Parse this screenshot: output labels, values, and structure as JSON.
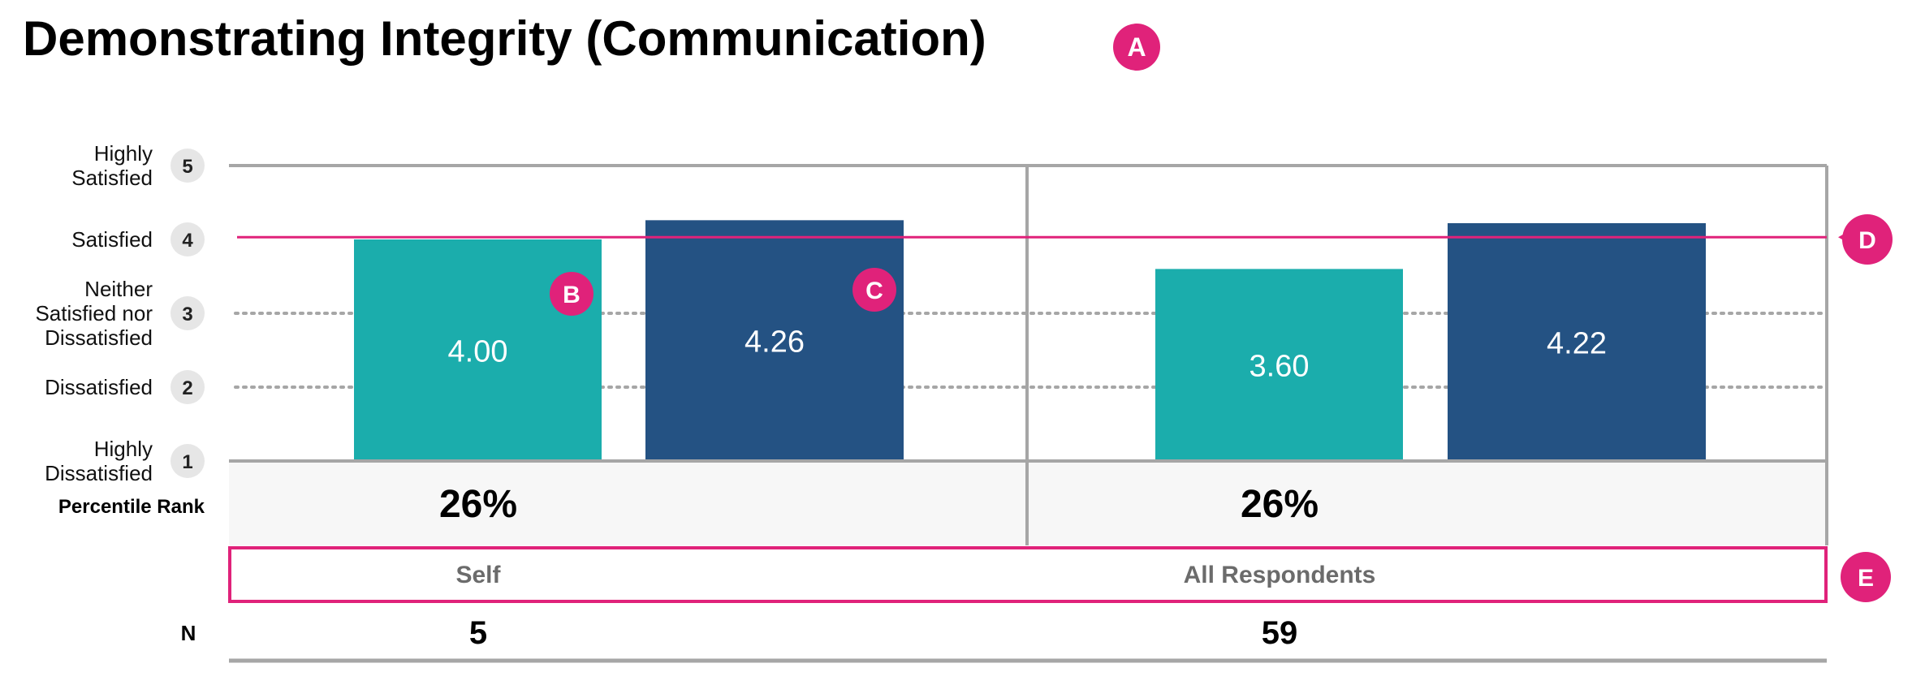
{
  "title": "Demonstrating Integrity (Communication)",
  "markers": {
    "a": "A",
    "b": "B",
    "c": "C",
    "d": "D",
    "e": "E"
  },
  "scale_labels": [
    {
      "value": 5,
      "lines": [
        "Highly",
        "Satisfied"
      ]
    },
    {
      "value": 4,
      "lines": [
        "Satisfied"
      ]
    },
    {
      "value": 3,
      "lines": [
        "Neither",
        "Satisfied nor",
        "Dissatisfied"
      ]
    },
    {
      "value": 2,
      "lines": [
        "Dissatisfied"
      ]
    },
    {
      "value": 1,
      "lines": [
        "Highly",
        "Dissatisfied"
      ]
    }
  ],
  "percentile_label": "Percentile Rank",
  "n_label": "N",
  "colors": {
    "teal": "#1badac",
    "navy": "#245283",
    "accent": "#e0227a",
    "grid": "#a6a6a6",
    "badge": "#e6e6e6",
    "band": "#f7f7f7",
    "group_text": "#6b6b6b"
  },
  "chart_data": {
    "type": "bar",
    "ylim": [
      1,
      5
    ],
    "grid": true,
    "reference_line": 4.03,
    "groups": [
      {
        "label": "Self",
        "percentile": "26%",
        "n": "5",
        "bars": [
          {
            "value": 4.0,
            "label": "4.00",
            "color": "teal"
          },
          {
            "value": 4.26,
            "label": "4.26",
            "color": "navy"
          }
        ]
      },
      {
        "label": "All Respondents",
        "percentile": "26%",
        "n": "59",
        "bars": [
          {
            "value": 3.6,
            "label": "3.60",
            "color": "teal"
          },
          {
            "value": 4.22,
            "label": "4.22",
            "color": "navy"
          }
        ]
      }
    ]
  }
}
